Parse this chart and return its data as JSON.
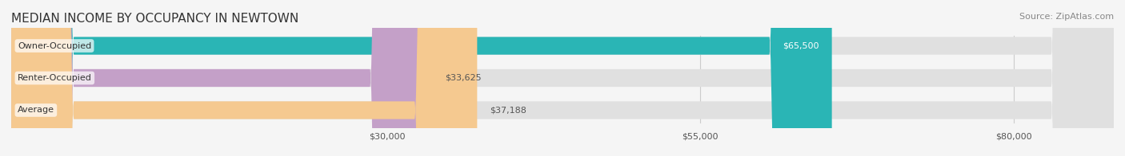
{
  "title": "MEDIAN INCOME BY OCCUPANCY IN NEWTOWN",
  "source": "Source: ZipAtlas.com",
  "categories": [
    "Owner-Occupied",
    "Renter-Occupied",
    "Average"
  ],
  "values": [
    65500,
    33625,
    37188
  ],
  "bar_colors": [
    "#2ab5b5",
    "#c4a0c8",
    "#f5c990"
  ],
  "label_colors": [
    "#ffffff",
    "#555555",
    "#555555"
  ],
  "value_labels": [
    "$65,500",
    "$33,625",
    "$37,188"
  ],
  "tick_labels": [
    "$30,000",
    "$55,000",
    "$80,000"
  ],
  "tick_values": [
    30000,
    55000,
    80000
  ],
  "xmin": 0,
  "xmax": 88000,
  "bar_height": 0.55,
  "background_color": "#f0f0f0",
  "bar_background_color": "#e8e8e8",
  "title_fontsize": 11,
  "source_fontsize": 8,
  "label_fontsize": 8,
  "value_fontsize": 8,
  "tick_fontsize": 8
}
